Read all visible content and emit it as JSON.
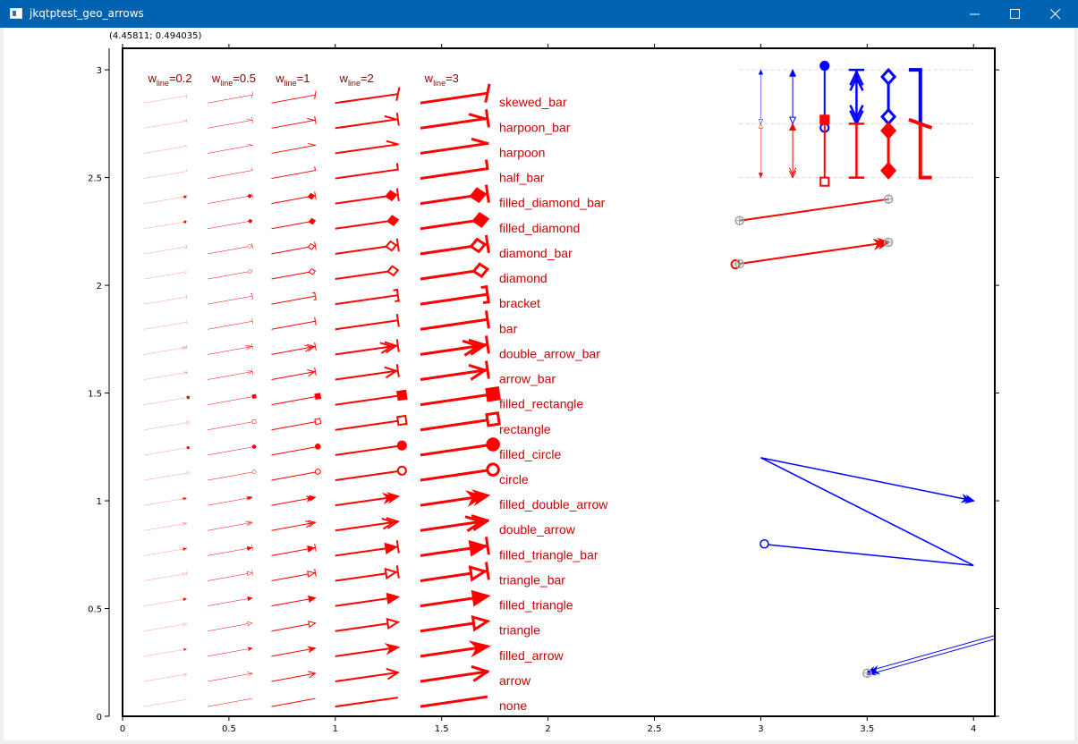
{
  "window": {
    "title": "jkqtptest_geo_arrows"
  },
  "status": {
    "coordinates": "(4.45811; 0.494035)"
  },
  "chart_data": {
    "type": "scatter",
    "xlim": [
      0,
      4.1
    ],
    "ylim": [
      0,
      3.1
    ],
    "xticks": [
      "0",
      "0.5",
      "1",
      "1.5",
      "2",
      "2.5",
      "3",
      "3.5",
      "4"
    ],
    "yticks": [
      "0",
      "0.5",
      "1",
      "1.5",
      "2",
      "2.5",
      "3"
    ],
    "column_headers": [
      {
        "sym": "w",
        "sub": "line",
        "rest": "=0.2",
        "x": 0.12,
        "lw": 0.2
      },
      {
        "sym": "w",
        "sub": "line",
        "rest": "=0.5",
        "x": 0.42,
        "lw": 0.5
      },
      {
        "sym": "w",
        "sub": "line",
        "rest": "=1",
        "x": 0.72,
        "lw": 1
      },
      {
        "sym": "w",
        "sub": "line",
        "rest": "=2",
        "x": 1.02,
        "lw": 2
      },
      {
        "sym": "w",
        "sub": "line",
        "rest": "=3",
        "x": 1.42,
        "lw": 3
      }
    ],
    "arrow_types": [
      "skewed_bar",
      "harpoon_bar",
      "harpoon",
      "half_bar",
      "filled_diamond_bar",
      "filled_diamond",
      "diamond_bar",
      "diamond",
      "bracket",
      "bar",
      "double_arrow_bar",
      "arrow_bar",
      "filled_rectangle",
      "rectangle",
      "filled_circle",
      "circle",
      "filled_double_arrow",
      "double_arrow",
      "filled_triangle_bar",
      "triangle_bar",
      "filled_triangle",
      "triangle",
      "filled_arrow",
      "arrow",
      "none"
    ],
    "colors": {
      "arrows": "#ff0000",
      "demo": "#0000ff",
      "markers": "#a0a0a0",
      "grid": "#d8d8d8"
    }
  }
}
